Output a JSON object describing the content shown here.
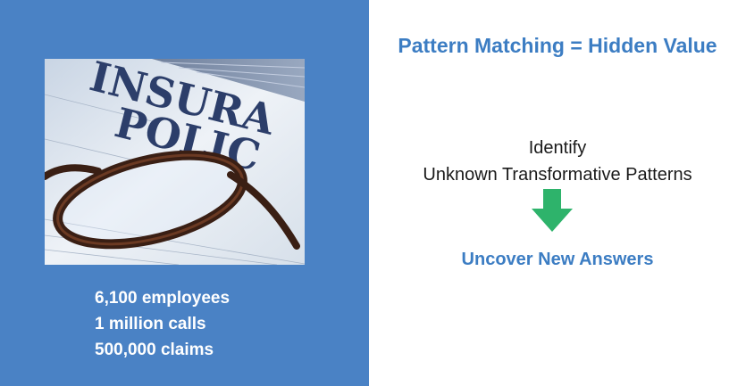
{
  "photo": {
    "text_line1": "INSURA",
    "text_line2": "POLIC"
  },
  "stats": {
    "employees": "6,100 employees",
    "calls": "1 million calls",
    "claims": "500,000 claims"
  },
  "headline": "Pattern Matching = Hidden Value",
  "identify": {
    "line1": "Identify",
    "line2": "Unknown Transformative Patterns"
  },
  "arrow_icon": "arrow-down-icon",
  "result": "Uncover New Answers",
  "colors": {
    "panel_blue": "#4a82c5",
    "heading_blue": "#3c7dc3",
    "arrow_green": "#2eb36b"
  }
}
